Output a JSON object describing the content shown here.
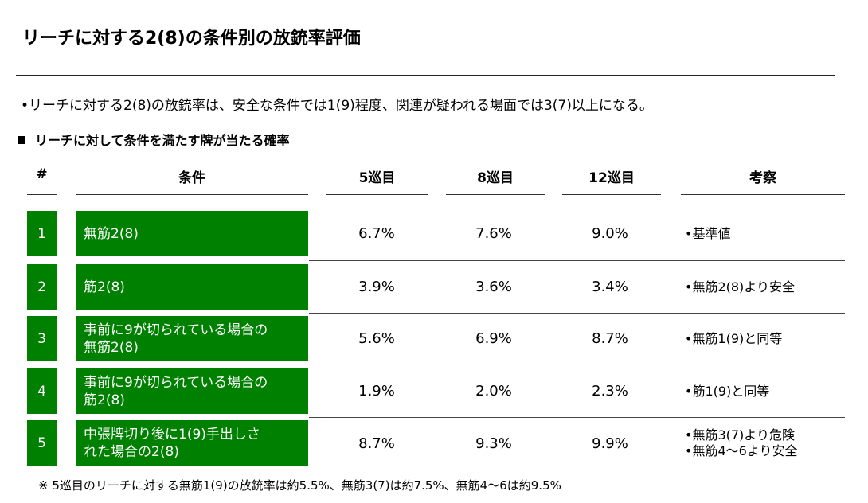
{
  "title": "リーチに対する2(8)の条件別の放銃率評価",
  "bullet": "•リーチに対する2(8)の放銃率は、安全な条件では1(9)程度、関連が疑われる場面では3(7)以上になる。",
  "subheading": "リーチに対して条件を満たす牌が当たる確率",
  "table": {
    "headers": {
      "num": "#",
      "condition": "条件",
      "t5": "5巡目",
      "t8": "8巡目",
      "t12": "12巡目",
      "note": "考察"
    },
    "rows": [
      {
        "num": "1",
        "condition": "無筋2(8)",
        "t5": "6.7%",
        "t8": "7.6%",
        "t12": "9.0%",
        "note1": "•基準値",
        "note2": ""
      },
      {
        "num": "2",
        "condition": "筋2(8)",
        "t5": "3.9%",
        "t8": "3.6%",
        "t12": "3.4%",
        "note1": "•無筋2(8)より安全",
        "note2": ""
      },
      {
        "num": "3",
        "condition": "事前に9が切られている場合の\n無筋2(8)",
        "t5": "5.6%",
        "t8": "6.9%",
        "t12": "8.7%",
        "note1": "•無筋1(9)と同等",
        "note2": ""
      },
      {
        "num": "4",
        "condition": "事前に9が切られている場合の\n筋2(8)",
        "t5": "1.9%",
        "t8": "2.0%",
        "t12": "2.3%",
        "note1": "•筋1(9)と同等",
        "note2": ""
      },
      {
        "num": "5",
        "condition": "中張牌切り後に1(9)手出しさ\nれた場合の2(8)",
        "t5": "8.7%",
        "t8": "9.3%",
        "t12": "9.9%",
        "note1": "•無筋3(7)より危険",
        "note2": "•無筋4〜6より安全"
      }
    ]
  },
  "footnote": "※ 5巡目のリーチに対する無筋1(9)の放銃率は約5.5%、無筋3(7)は約7.5%、無筋4〜6は約9.5%",
  "colors": {
    "accent": "#008000"
  }
}
